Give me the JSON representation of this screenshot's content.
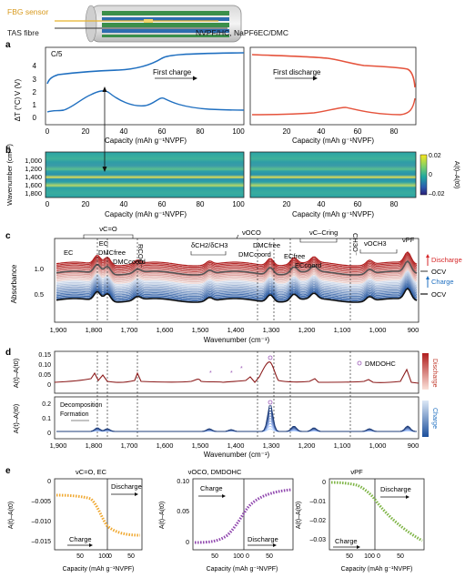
{
  "header": {
    "fbg_label": "FBG sensor",
    "tas_label": "TAS fibre",
    "cell_label": "NVPF/HC, NaPF6EC/DMC"
  },
  "panel_a": {
    "letter": "a",
    "rate": "C/5",
    "ylabel_v": "V (V)",
    "ylabel_dt": "ΔT (°C)",
    "yticks_v": [
      "3",
      "4"
    ],
    "yticks_dt": [
      "0",
      "1",
      "2"
    ],
    "left_xticks": [
      "0",
      "20",
      "40",
      "60",
      "80",
      "100"
    ],
    "right_xticks": [
      "20",
      "40",
      "60",
      "80"
    ],
    "xlabel": "Capacity (mAh g⁻¹NVPF)",
    "charge_label": "First charge",
    "discharge_label": "First discharge",
    "colors": {
      "charge": "#1f6fc0",
      "discharge": "#e5533c"
    }
  },
  "panel_b": {
    "letter": "b",
    "ylabel": "Wavenumber (cm⁻¹)",
    "yticks": [
      "1,000",
      "1,200",
      "1,400",
      "1,600",
      "1,800"
    ],
    "left_xticks": [
      "0",
      "20",
      "40",
      "60",
      "80",
      "100"
    ],
    "right_xticks": [
      "20",
      "40",
      "60",
      "80"
    ],
    "xlabel": "Capacity (mAh g⁻¹NVPF)",
    "colorbar_ticks": [
      "0.02",
      "0",
      "–0.02"
    ],
    "colorbar_label": "A(t)–A(t0)"
  },
  "panel_c": {
    "letter": "c",
    "ylabel": "Absorbance",
    "yticks": [
      "0.5",
      "1.0"
    ],
    "xticks": [
      "1,900",
      "1,800",
      "1,700",
      "1,600",
      "1,500",
      "1,400",
      "1,300",
      "1,200",
      "1,100",
      "1,000",
      "900"
    ],
    "xlabel": "Wavenumber (cm⁻¹)",
    "annotations": {
      "co": "νC=O",
      "ec_top": "EC",
      "ec_left": "EC",
      "dmc_free": "DMCfree",
      "dmc_coord": "DMCcoord",
      "rcoo": "RCOO⁻",
      "ch2ch3": "δCH2/δCH3",
      "oco": "νOCO",
      "dmc_free2": "DMCfree",
      "dmc_coord2": "DMCcoord",
      "cc_ring": "νC–Cring",
      "ec_free": "ECfree",
      "ec_coord": "ECcoord",
      "ch3o": "CH3O⁻",
      "och3": "νOCH3",
      "pf": "νPF"
    },
    "legend": {
      "discharge": "Discharge",
      "ocv1": "OCV",
      "charge": "Charge",
      "ocv2": "OCV"
    }
  },
  "panel_d": {
    "letter": "d",
    "ylabel": "A(t)–A(t0)",
    "yticks_top": [
      "0",
      "0.05",
      "0.10",
      "0.15"
    ],
    "yticks_bottom": [
      "0",
      "0.1",
      "0.2"
    ],
    "xticks": [
      "1,900",
      "1,800",
      "1,700",
      "1,600",
      "1,500",
      "1,400",
      "1,300",
      "1,200",
      "1,100",
      "1,000",
      "900"
    ],
    "xlabel": "Wavenumber (cm⁻¹)",
    "dmdohc": "DMDOHC",
    "decomposition": "Decomposition",
    "formation": "Formation",
    "bar_discharge": "Discharge",
    "bar_charge": "Charge"
  },
  "panel_e": {
    "letter": "e",
    "plots": [
      {
        "title": "νC=O, EC",
        "ylabel": "A(t)–A(t0)",
        "yticks": [
          "0",
          "–0.005",
          "–0.010",
          "–0.015"
        ],
        "xticks": [
          "50",
          "100",
          "0",
          "50"
        ],
        "xlabel": "Capacity (mAh g⁻¹NVPF)",
        "charge": "Charge",
        "discharge": "Discharge",
        "color": "#f0a830"
      },
      {
        "title": "νOCO, DMDOHC",
        "ylabel": "A(t)–A(t0)",
        "yticks": [
          "0.10",
          "0.05",
          "0"
        ],
        "xticks": [
          "50",
          "100",
          "0",
          "50"
        ],
        "xlabel": "Capacity (mAh g⁻¹NVPF)",
        "charge": "Charge",
        "discharge": "Discharge",
        "color": "#8e44ad"
      },
      {
        "title": "νPF",
        "ylabel": "A(t)–A(t0)",
        "yticks": [
          "0",
          "–0.01",
          "–0.02",
          "–0.03"
        ],
        "xticks": [
          "50",
          "100",
          "0",
          "50"
        ],
        "xlabel": "Capacity (mAh g⁻¹NVPF)",
        "charge": "Charge",
        "discharge": "Discharge",
        "color": "#7cb342"
      }
    ]
  }
}
